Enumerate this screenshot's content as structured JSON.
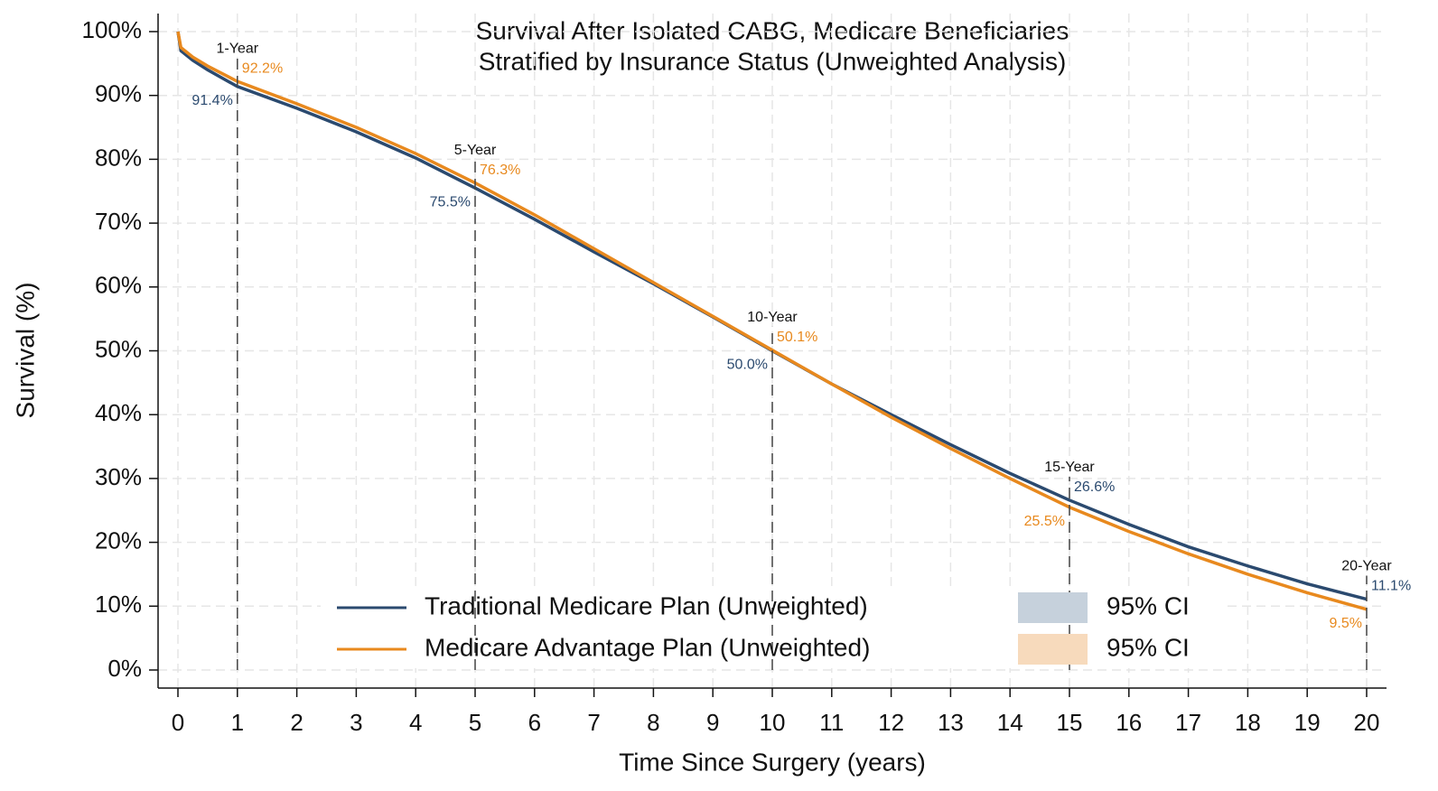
{
  "chart_data": {
    "type": "line",
    "title": "Survival After Isolated CABG, Medicare Beneficiaries",
    "subtitle": "Stratified by Insurance Status (Unweighted Analysis)",
    "x_label": "Time Since Surgery (years)",
    "y_label": "Survival (%)",
    "x": [
      0,
      0.05,
      0.25,
      0.5,
      1,
      2,
      3,
      4,
      5,
      6,
      7,
      8,
      9,
      10,
      11,
      12,
      13,
      14,
      15,
      16,
      17,
      18,
      19,
      20
    ],
    "series": [
      {
        "name": "Traditional Medicare Plan (Unweighted)",
        "color": "#2b4a6f",
        "ci_label": "95% CI",
        "ci_color": "#c6d1dc",
        "values": [
          100,
          97,
          95.5,
          94,
          91.4,
          88,
          84.3,
          80.2,
          75.5,
          70.6,
          65.5,
          60.5,
          55.3,
          50.0,
          44.8,
          40,
          35.3,
          30.8,
          26.6,
          22.8,
          19.3,
          16.3,
          13.5,
          11.1
        ]
      },
      {
        "name": "Medicare Advantage Plan (Unweighted)",
        "color": "#e8891e",
        "ci_label": "95% CI",
        "ci_color": "#f7dabc",
        "values": [
          100,
          97.5,
          96,
          94.6,
          92.2,
          88.7,
          85,
          80.9,
          76.3,
          71.3,
          66,
          60.7,
          55.4,
          50.1,
          44.8,
          39.6,
          34.7,
          30,
          25.5,
          21.7,
          18.2,
          15,
          12.1,
          9.5
        ]
      }
    ],
    "annotations": [
      {
        "x": 1,
        "label": "1-Year",
        "values": [
          91.4,
          92.2
        ],
        "value_labels": [
          "91.4%",
          "92.2%"
        ]
      },
      {
        "x": 5,
        "label": "5-Year",
        "values": [
          75.5,
          76.3
        ],
        "value_labels": [
          "75.5%",
          "76.3%"
        ]
      },
      {
        "x": 10,
        "label": "10-Year",
        "values": [
          50.0,
          50.1
        ],
        "value_labels": [
          "50.0%",
          "50.1%"
        ]
      },
      {
        "x": 15,
        "label": "15-Year",
        "values": [
          26.6,
          25.5
        ],
        "value_labels": [
          "26.6%",
          "25.5%"
        ]
      },
      {
        "x": 20,
        "label": "20-Year",
        "values": [
          11.1,
          9.5
        ],
        "value_labels": [
          "11.1%",
          "9.5%"
        ]
      }
    ],
    "xlim": [
      0,
      20
    ],
    "ylim": [
      0,
      100
    ],
    "xticks": [
      0,
      1,
      2,
      3,
      4,
      5,
      6,
      7,
      8,
      9,
      10,
      11,
      12,
      13,
      14,
      15,
      16,
      17,
      18,
      19,
      20
    ],
    "yticks": [
      {
        "value": 0,
        "label": "0%"
      },
      {
        "value": 10,
        "label": "10%"
      },
      {
        "value": 20,
        "label": "20%"
      },
      {
        "value": 30,
        "label": "30%"
      },
      {
        "value": 40,
        "label": "40%"
      },
      {
        "value": 50,
        "label": "50%"
      },
      {
        "value": 60,
        "label": "60%"
      },
      {
        "value": 70,
        "label": "70%"
      },
      {
        "value": 80,
        "label": "80%"
      },
      {
        "value": 90,
        "label": "90%"
      },
      {
        "value": 100,
        "label": "100%"
      }
    ],
    "grid": true
  }
}
